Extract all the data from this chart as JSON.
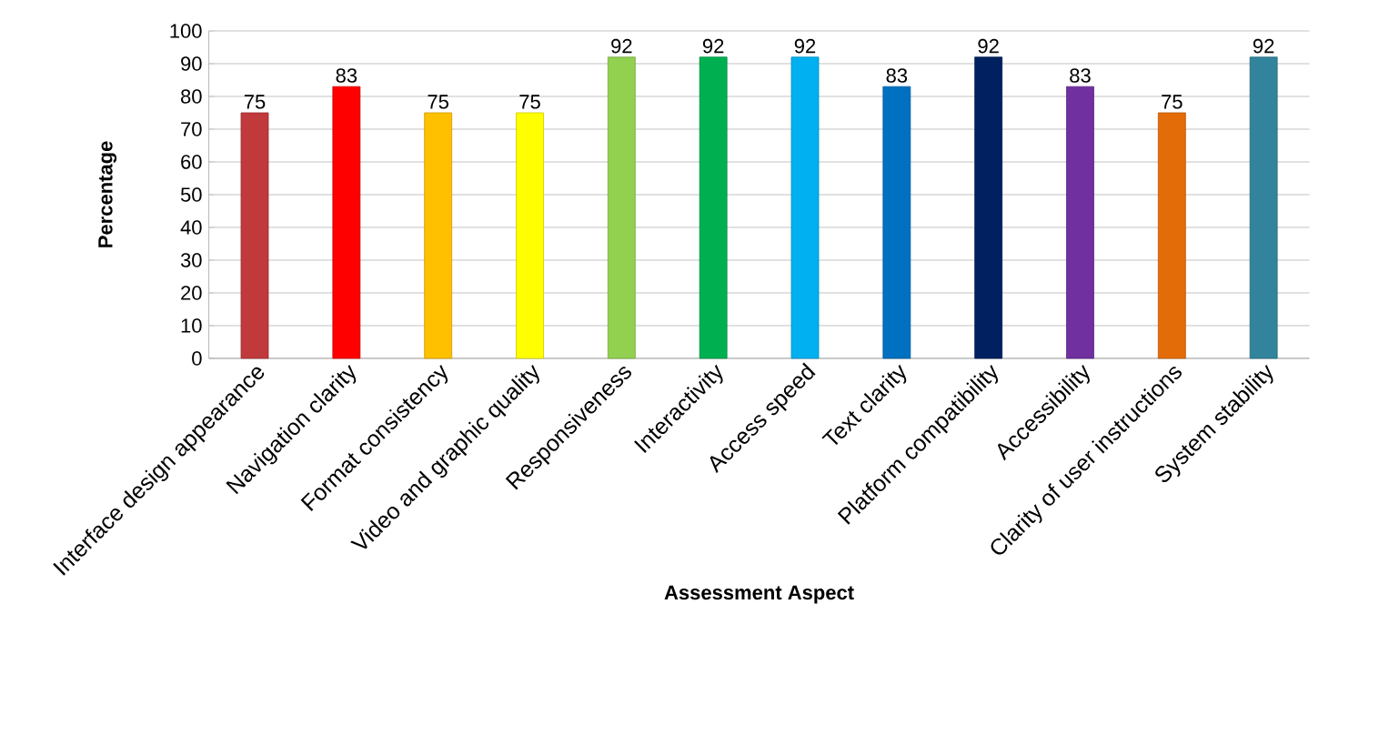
{
  "chart_data": {
    "type": "bar",
    "xlabel": "Assessment Aspect",
    "ylabel": "Percentage",
    "categories": [
      "Interface design appearance",
      "Navigation clarity",
      "Format consistency",
      "Video and graphic quality",
      "Responsiveness",
      "Interactivity",
      "Access speed",
      "Text clarity",
      "Platform compatibility",
      "Accessibility",
      "Clarity of user instructions",
      "System stability"
    ],
    "values": [
      75,
      83,
      75,
      75,
      92,
      92,
      92,
      83,
      92,
      83,
      75,
      92
    ],
    "colors": [
      "#c0393b",
      "#ff0000",
      "#ffc000",
      "#ffff00",
      "#92d050",
      "#00b050",
      "#00b0f0",
      "#0070c0",
      "#002060",
      "#7030a0",
      "#e36c09",
      "#31849b"
    ],
    "ylim": [
      0,
      100
    ],
    "yticks": [
      0,
      10,
      20,
      30,
      40,
      50,
      60,
      70,
      80,
      90,
      100
    ],
    "grid": "y",
    "data_labels": true
  }
}
